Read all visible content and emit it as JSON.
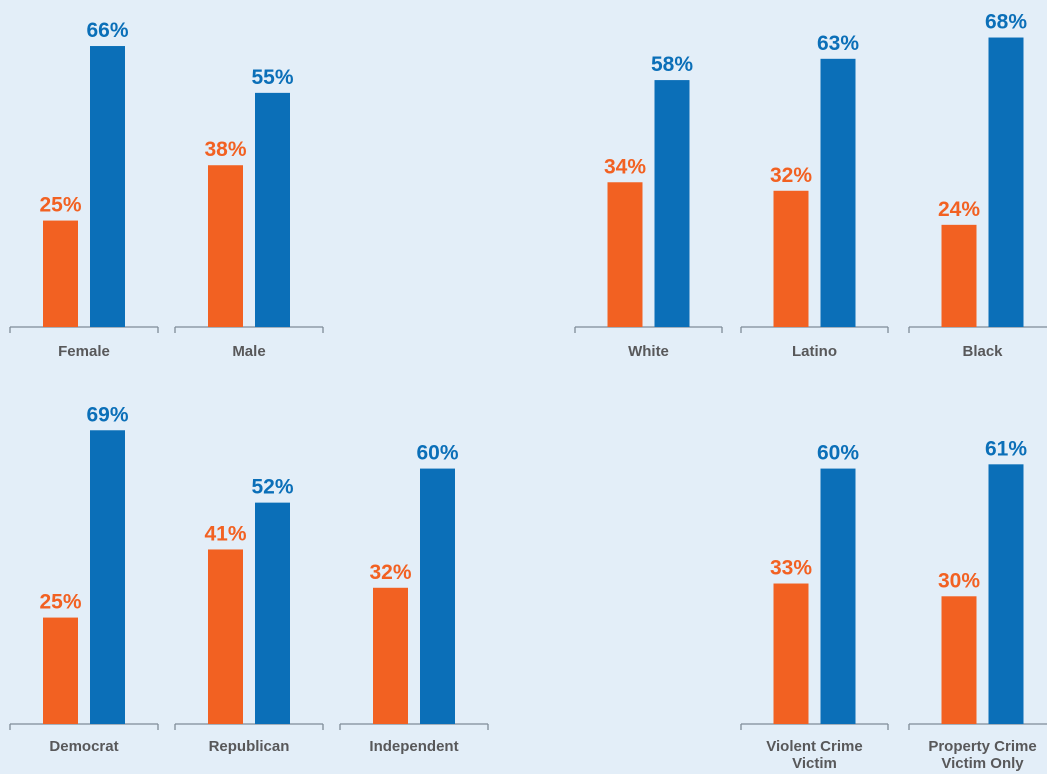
{
  "colors": {
    "background": "#e3eef8",
    "series_a": "#f26122",
    "series_b": "#0b6fb8",
    "axis": "#7f8c97",
    "category_text": "#58585a"
  },
  "chart_data": [
    {
      "type": "bar",
      "panel": "gender",
      "categories": [
        "Female",
        "Male"
      ],
      "series": [
        {
          "color_key": "series_a",
          "values": [
            25,
            38
          ]
        },
        {
          "color_key": "series_b",
          "values": [
            66,
            55
          ]
        }
      ],
      "labels": [
        [
          "25%",
          "38%"
        ],
        [
          "66%",
          "55%"
        ]
      ],
      "ylim": [
        0,
        70
      ]
    },
    {
      "type": "bar",
      "panel": "race",
      "categories": [
        "White",
        "Latino",
        "Black"
      ],
      "series": [
        {
          "color_key": "series_a",
          "values": [
            34,
            32,
            24
          ]
        },
        {
          "color_key": "series_b",
          "values": [
            58,
            63,
            68
          ]
        }
      ],
      "labels": [
        [
          "34%",
          "32%",
          "24%"
        ],
        [
          "58%",
          "63%",
          "68%"
        ]
      ],
      "ylim": [
        0,
        70
      ]
    },
    {
      "type": "bar",
      "panel": "party",
      "categories": [
        "Democrat",
        "Republican",
        "Independent"
      ],
      "series": [
        {
          "color_key": "series_a",
          "values": [
            25,
            41,
            32
          ]
        },
        {
          "color_key": "series_b",
          "values": [
            69,
            52,
            60
          ]
        }
      ],
      "labels": [
        [
          "25%",
          "41%",
          "32%"
        ],
        [
          "69%",
          "52%",
          "60%"
        ]
      ],
      "ylim": [
        0,
        70
      ]
    },
    {
      "type": "bar",
      "panel": "victims",
      "categories": [
        [
          "Violent Crime",
          "Victim"
        ],
        [
          "Property Crime",
          "Victim Only"
        ]
      ],
      "series": [
        {
          "color_key": "series_a",
          "values": [
            33,
            30
          ]
        },
        {
          "color_key": "series_b",
          "values": [
            60,
            61
          ]
        }
      ],
      "labels": [
        [
          "33%",
          "30%"
        ],
        [
          "60%",
          "61%"
        ]
      ],
      "ylim": [
        0,
        70
      ]
    }
  ]
}
